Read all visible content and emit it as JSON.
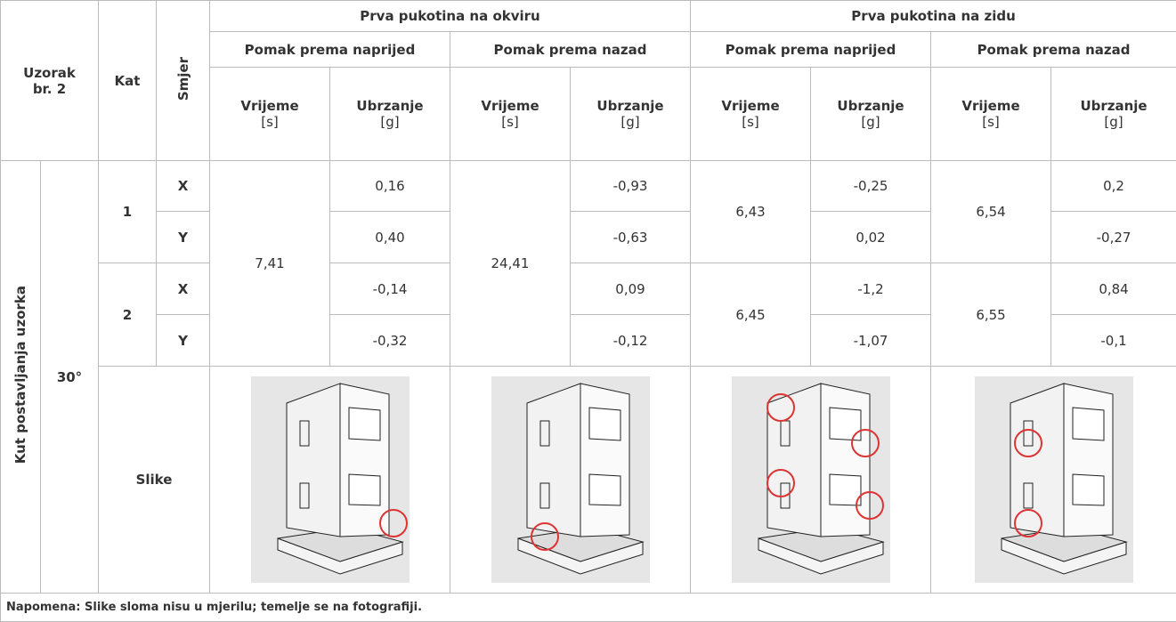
{
  "header": {
    "sample": "Uzorak br. 2",
    "floor": "Kat",
    "direction": "Smjer",
    "groups": [
      {
        "title": "Prva pukotina na okviru",
        "subgroups": [
          {
            "title": "Pomak prema naprijed",
            "cols": [
              {
                "name": "Vrijeme",
                "unit": "[s]"
              },
              {
                "name": "Ubrzanje",
                "unit": "[g]"
              }
            ]
          },
          {
            "title": "Pomak prema nazad",
            "cols": [
              {
                "name": "Vrijeme",
                "unit": "[s]"
              },
              {
                "name": "Ubrzanje",
                "unit": "[g]"
              }
            ]
          }
        ]
      },
      {
        "title": "Prva pukotina na zidu",
        "subgroups": [
          {
            "title": "Pomak prema naprijed",
            "cols": [
              {
                "name": "Vrijeme",
                "unit": "[s]"
              },
              {
                "name": "Ubrzanje",
                "unit": "[g]"
              }
            ]
          },
          {
            "title": "Pomak prema nazad",
            "cols": [
              {
                "name": "Vrijeme",
                "unit": "[s]"
              },
              {
                "name": "Ubrzanje",
                "unit": "[g]"
              }
            ]
          }
        ]
      }
    ]
  },
  "body": {
    "angle_label": "Kut postavljanja uzorka",
    "angle": "30°",
    "floors": [
      {
        "floor": "1",
        "directions": [
          "X",
          "Y"
        ]
      },
      {
        "floor": "2",
        "directions": [
          "X",
          "Y"
        ]
      }
    ],
    "frame_times": [
      "7,41",
      "24,41"
    ],
    "wall_times": [
      [
        "6,43",
        "6,54"
      ],
      [
        "6,45",
        "6,55"
      ]
    ],
    "accelerations": [
      [
        "0,16",
        "-0,93",
        "-0,25",
        "0,2"
      ],
      [
        "0,40",
        "-0,63",
        "0,02",
        "-0,27"
      ],
      [
        "-0,14",
        "0,09",
        "-1,2",
        "0,84"
      ],
      [
        "-0,32",
        "-0,12",
        "-1,07",
        "-0,1"
      ]
    ],
    "images_label": "Slike"
  },
  "note": "Napomena: Slike sloma nisu u mjerilu; temelje se na fotografiji."
}
